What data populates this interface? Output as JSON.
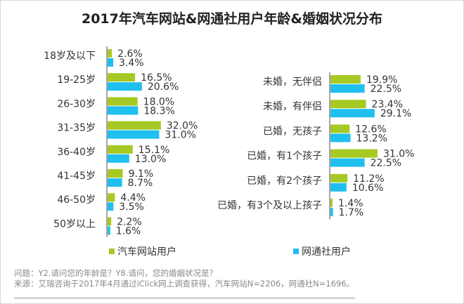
{
  "title": "2017年汽车网站&网通社用户年龄&婚姻状况分布",
  "colors": {
    "series1": "#a6c923",
    "series2": "#1fbff0",
    "axis": "#888888",
    "text": "#333333"
  },
  "chart_data": [
    {
      "type": "bar",
      "orientation": "horizontal",
      "categories": [
        "18岁及以下",
        "19-25岁",
        "26-30岁",
        "31-35岁",
        "36-40岁",
        "41-45岁",
        "46-50岁",
        "50岁以上"
      ],
      "series": [
        {
          "name": "汽车网站用户",
          "values": [
            2.6,
            16.5,
            18.0,
            32.0,
            15.1,
            9.1,
            4.4,
            2.2
          ]
        },
        {
          "name": "网通社用户",
          "values": [
            3.4,
            20.6,
            18.3,
            31.0,
            13.0,
            8.7,
            3.5,
            1.6
          ]
        }
      ],
      "data_labels": [
        [
          "2.6%",
          "16.5%",
          "18.0%",
          "32.0%",
          "15.1%",
          "9.1%",
          "4.4%",
          "2.2%"
        ],
        [
          "3.4%",
          "20.6%",
          "18.3%",
          "31.0%",
          "13.0%",
          "8.7%",
          "3.5%",
          "1.6%"
        ]
      ],
      "unit": "%"
    },
    {
      "type": "bar",
      "orientation": "horizontal",
      "categories": [
        "未婚，无伴侣",
        "未婚，有伴侣",
        "已婚，无孩子",
        "已婚，有1个孩子",
        "已婚，有2个孩子",
        "已婚，有3个及以上孩子"
      ],
      "series": [
        {
          "name": "汽车网站用户",
          "values": [
            19.9,
            23.4,
            12.6,
            31.0,
            11.2,
            1.4
          ]
        },
        {
          "name": "网通社用户",
          "values": [
            22.5,
            29.1,
            13.2,
            22.5,
            10.6,
            1.7
          ]
        }
      ],
      "data_labels": [
        [
          "19.9%",
          "23.4%",
          "12.6%",
          "31.0%",
          "11.2%",
          "1.4%"
        ],
        [
          "22.5%",
          "29.1%",
          "13.2%",
          "22.5%",
          "10.6%",
          "1.7%"
        ]
      ],
      "unit": "%"
    }
  ],
  "legend": {
    "series1": "汽车网站用户",
    "series2": "网通社用户",
    "placement": "bottom"
  },
  "footnote": {
    "question": "问题：Y2.请问您的年龄是？Y8.请问，您的婚姻状况是？",
    "source": "来源：艾瑞咨询于2017年4月通过iClick网上调查获得，汽车网站N=2206，网通社N=1696。"
  }
}
